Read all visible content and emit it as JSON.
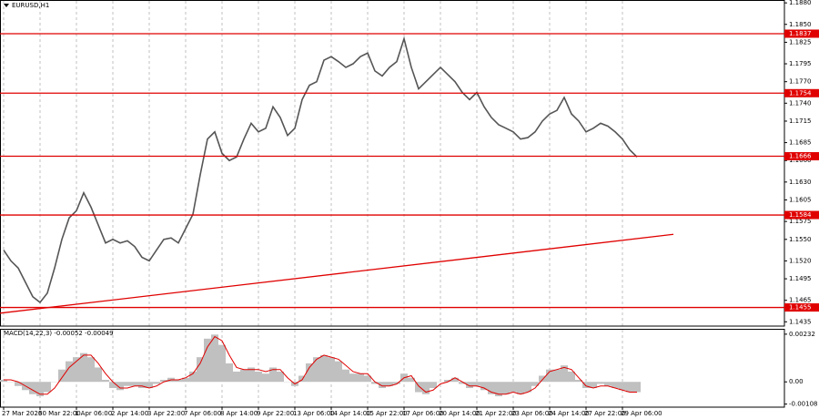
{
  "chart_data": [
    {
      "type": "line",
      "title": "EURUSD,H1",
      "categories": [
        "27 Mar 2026",
        null,
        null,
        null,
        null,
        "30 Mar 22:00",
        null,
        null,
        null,
        null,
        "1 Apr 06:00",
        null,
        null,
        null,
        null,
        "2 Apr 14:00",
        null,
        null,
        null,
        null,
        "3 Apr 22:00",
        null,
        null,
        null,
        null,
        "7 Apr 06:00",
        null,
        null,
        null,
        null,
        "8 Apr 14:00",
        null,
        null,
        null,
        null,
        "9 Apr 22:00",
        null,
        null,
        null,
        null,
        "13 Apr 06:00",
        null,
        null,
        null,
        null,
        "14 Apr 14:00",
        null,
        null,
        null,
        null,
        "15 Apr 22:00",
        null,
        null,
        null,
        null,
        "17 Apr 06:00",
        null,
        null,
        null,
        null,
        "20 Apr 14:00",
        null,
        null,
        null,
        null,
        "21 Apr 22:00",
        null,
        null,
        null,
        null,
        "23 Apr 06:00",
        null,
        null,
        null,
        null,
        "24 Apr 14:00",
        null,
        null,
        null,
        null,
        "27 Apr 22:00",
        null,
        null,
        null,
        null,
        "29 Apr 06:00",
        null,
        null
      ],
      "series": [
        {
          "name": "EURUSD",
          "color": "#555555",
          "values": [
            1.1535,
            1.152,
            1.151,
            1.149,
            1.147,
            1.1462,
            1.1475,
            1.151,
            1.155,
            1.158,
            1.159,
            1.1615,
            1.1595,
            1.157,
            1.1545,
            1.155,
            1.1545,
            1.1548,
            1.154,
            1.1525,
            1.152,
            1.1535,
            1.155,
            1.1552,
            1.1545,
            1.1565,
            1.1585,
            1.164,
            1.169,
            1.17,
            1.167,
            1.166,
            1.1665,
            1.169,
            1.1712,
            1.17,
            1.1705,
            1.1735,
            1.172,
            1.1695,
            1.1705,
            1.1745,
            1.1765,
            1.177,
            1.18,
            1.1805,
            1.1798,
            1.179,
            1.1795,
            1.1805,
            1.181,
            1.1785,
            1.1778,
            1.179,
            1.1798,
            1.183,
            1.179,
            1.176,
            1.177,
            1.178,
            1.179,
            1.178,
            1.177,
            1.1755,
            1.1745,
            1.1755,
            1.1735,
            1.172,
            1.171,
            1.1705,
            1.17,
            1.169,
            1.1692,
            1.17,
            1.1715,
            1.1725,
            1.173,
            1.1748,
            1.1725,
            1.1715,
            1.17,
            1.1705,
            1.1712,
            1.1708,
            1.17,
            1.169,
            1.1675,
            1.1665
          ]
        }
      ],
      "ylim": [
        1.1429,
        1.1884
      ],
      "yticks": [
        {
          "value": 1.188,
          "label": "1.1880"
        },
        {
          "value": 1.185,
          "label": "1.1850"
        },
        1.1825,
        1.1795,
        {
          "value": 1.177,
          "label": "1.1770"
        },
        {
          "value": 1.174,
          "label": "1.1740"
        },
        1.1715,
        1.1685,
        {
          "value": 1.166,
          "label": "1.1660"
        },
        {
          "value": 1.163,
          "label": "1.1630"
        },
        1.1605,
        1.1575,
        {
          "value": 1.155,
          "label": "1.1550"
        },
        {
          "value": 1.152,
          "label": "1.1520"
        },
        1.1495,
        1.1465,
        1.1435
      ],
      "levels": [
        1.1837,
        1.1754,
        1.1666,
        1.1584,
        1.1455
      ],
      "level_color": "#e00000",
      "trendline": {
        "x": [
          0,
          92
        ],
        "values": [
          1.1447,
          1.1557
        ],
        "color": "#e00000"
      },
      "grid": true
    },
    {
      "type": "bar",
      "title": "MACD(14,22,3) -0.00052 -0.00049",
      "series": [
        {
          "name": "MACD",
          "color": "#c0c0c0",
          "values": [
            0.0001,
            0,
            -0.0002,
            -0.0004,
            -0.0006,
            -0.0007,
            -0.0005,
            0,
            0.0006,
            0.001,
            0.0012,
            0.0014,
            0.0012,
            0.0007,
            0.0001,
            -0.0003,
            -0.0004,
            -0.0002,
            -0.0002,
            -0.0003,
            -0.0003,
            -0.0001,
            0.0001,
            0.0002,
            0.0001,
            0.0002,
            0.0005,
            0.0012,
            0.0021,
            0.0023,
            0.0018,
            0.0009,
            0.0005,
            0.0006,
            0.0007,
            0.0005,
            0.0004,
            0.0007,
            0.0005,
            0,
            -0.0002,
            0.0003,
            0.0009,
            0.0012,
            0.0013,
            0.0012,
            0.001,
            0.0006,
            0.0004,
            0.0004,
            0.0003,
            -0.0001,
            -0.0003,
            -0.0002,
            -0.0001,
            0.0004,
            0.0002,
            -0.0005,
            -0.0006,
            -0.0003,
            0,
            0.0001,
            0.0002,
            -0.0001,
            -0.0003,
            -0.0002,
            -0.0004,
            -0.0006,
            -0.0007,
            -0.0006,
            -0.0005,
            -0.0006,
            -0.0005,
            -0.0002,
            0.0003,
            0.0006,
            0.0006,
            0.0008,
            0.0005,
            0.0001,
            -0.0003,
            -0.0003,
            -0.0001,
            -0.0002,
            -0.0003,
            -0.0004,
            -0.0005,
            -0.0005
          ]
        },
        {
          "name": "Signal",
          "color": "#e00000",
          "axis": "line",
          "values": [
            0.0001,
            0.0001,
            0,
            -0.0002,
            -0.0004,
            -0.0006,
            -0.0006,
            -0.0003,
            0.0002,
            0.0007,
            0.001,
            0.0013,
            0.0013,
            0.0009,
            0.0004,
            0,
            -0.0003,
            -0.0003,
            -0.0002,
            -0.0002,
            -0.0003,
            -0.0002,
            0,
            0.0001,
            0.0001,
            0.0002,
            0.0004,
            0.0009,
            0.0017,
            0.0022,
            0.002,
            0.0013,
            0.0007,
            0.0006,
            0.0006,
            0.0006,
            0.0005,
            0.0006,
            0.0006,
            0.0002,
            -0.0001,
            0.0001,
            0.0007,
            0.0011,
            0.0013,
            0.0012,
            0.0011,
            0.0008,
            0.0005,
            0.0004,
            0.0004,
            0,
            -0.0002,
            -0.0002,
            -0.0001,
            0.0002,
            0.0003,
            -0.0002,
            -0.0005,
            -0.0004,
            -0.0001,
            0,
            0.0002,
            0,
            -0.0002,
            -0.0002,
            -0.0003,
            -0.0005,
            -0.0006,
            -0.0006,
            -0.0005,
            -0.0006,
            -0.0005,
            -0.0003,
            0.0001,
            0.0005,
            0.0006,
            0.0007,
            0.0006,
            0.0002,
            -0.0002,
            -0.0003,
            -0.0002,
            -0.0002,
            -0.0003,
            -0.0004,
            -0.0005,
            -0.0005
          ]
        }
      ],
      "ylim": [
        -0.00123,
        0.00258
      ],
      "yticks": [
        0.00232,
        {
          "value": 0,
          "label": "0.00"
        },
        -0.00108
      ]
    }
  ]
}
